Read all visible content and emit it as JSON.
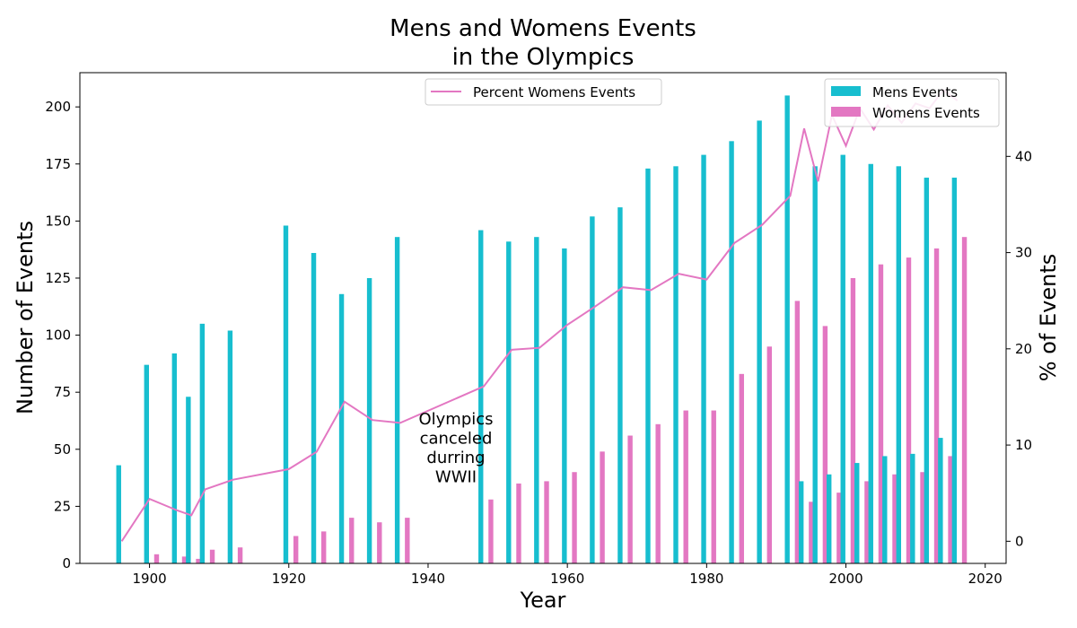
{
  "chart_data": {
    "type": "bar",
    "title": [
      "Mens and Womens Events",
      "in the Olympics"
    ],
    "xlabel": "Year",
    "ylabel": "Number of Events",
    "y2label": "% of Events",
    "xlim": [
      1890,
      2023
    ],
    "ylim": [
      0,
      215
    ],
    "y2lim": [
      -2.3,
      48.7
    ],
    "xticks": [
      1900,
      1920,
      1940,
      1960,
      1980,
      2000,
      2020
    ],
    "yticks": [
      0,
      25,
      50,
      75,
      100,
      125,
      150,
      175,
      200
    ],
    "y2ticks": [
      0,
      10,
      20,
      30,
      40
    ],
    "colors": {
      "mens": "#17becf",
      "womens": "#e377c2",
      "line": "#e377c2"
    },
    "years": [
      1896,
      1900,
      1904,
      1906,
      1908,
      1912,
      1920,
      1924,
      1928,
      1932,
      1936,
      1948,
      1952,
      1956,
      1960,
      1964,
      1968,
      1972,
      1976,
      1980,
      1984,
      1988,
      1992,
      1994,
      1996,
      1998,
      2000,
      2002,
      2004,
      2006,
      2008,
      2010,
      2012,
      2014,
      2016
    ],
    "series": [
      {
        "name": "Mens Events",
        "values": [
          43,
          87,
          92,
          73,
          105,
          102,
          148,
          136,
          118,
          125,
          143,
          146,
          141,
          143,
          138,
          152,
          156,
          173,
          174,
          179,
          185,
          194,
          205,
          36,
          174,
          39,
          179,
          44,
          175,
          47,
          174,
          48,
          169,
          55,
          169
        ]
      },
      {
        "name": "Womens Events",
        "values": [
          0,
          4,
          3,
          2,
          6,
          7,
          12,
          14,
          20,
          18,
          20,
          28,
          35,
          36,
          40,
          49,
          56,
          61,
          67,
          67,
          83,
          95,
          115,
          27,
          104,
          31,
          125,
          36,
          131,
          39,
          134,
          40,
          138,
          47,
          143
        ]
      }
    ],
    "line": {
      "name": "Percent Womens Events",
      "axis": "right",
      "values": [
        0.0,
        4.4,
        3.2,
        2.7,
        5.4,
        6.4,
        7.5,
        9.3,
        14.5,
        12.6,
        12.3,
        16.1,
        19.9,
        20.1,
        22.5,
        24.4,
        26.4,
        26.1,
        27.8,
        27.2,
        31.0,
        32.9,
        35.9,
        42.9,
        37.4,
        44.3,
        41.1,
        45.0,
        42.8,
        45.3,
        43.5,
        45.5,
        45.0,
        46.9,
        45.8
      ]
    },
    "legends": [
      {
        "location": "upper-center",
        "items": [
          "Percent Womens Events"
        ]
      },
      {
        "location": "upper-right",
        "items": [
          "Mens Events",
          "Womens Events"
        ]
      }
    ],
    "annotations": [
      {
        "lines": [
          "Olympics",
          "canceled",
          "durring",
          "WWII"
        ],
        "x": 1944,
        "y": 50
      }
    ],
    "grid": false
  }
}
